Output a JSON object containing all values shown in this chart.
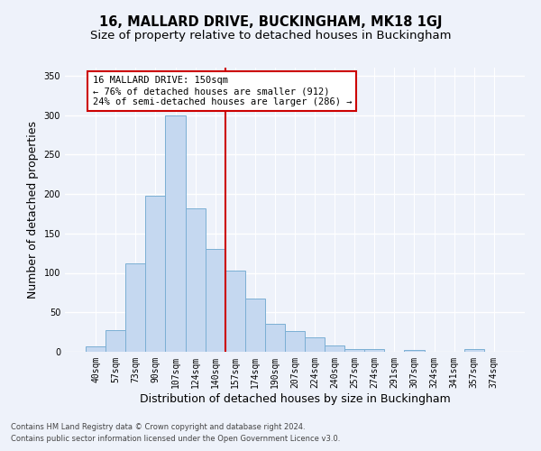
{
  "title": "16, MALLARD DRIVE, BUCKINGHAM, MK18 1GJ",
  "subtitle": "Size of property relative to detached houses in Buckingham",
  "xlabel": "Distribution of detached houses by size in Buckingham",
  "ylabel": "Number of detached properties",
  "categories": [
    "40sqm",
    "57sqm",
    "73sqm",
    "90sqm",
    "107sqm",
    "124sqm",
    "140sqm",
    "157sqm",
    "174sqm",
    "190sqm",
    "207sqm",
    "224sqm",
    "240sqm",
    "257sqm",
    "274sqm",
    "291sqm",
    "307sqm",
    "324sqm",
    "341sqm",
    "357sqm",
    "374sqm"
  ],
  "values": [
    7,
    27,
    112,
    198,
    300,
    182,
    130,
    103,
    68,
    35,
    26,
    18,
    8,
    4,
    4,
    0,
    2,
    0,
    0,
    3,
    0
  ],
  "bar_color": "#c5d8f0",
  "bar_edge_color": "#7bafd4",
  "vline_x_index": 7,
  "vline_color": "#cc0000",
  "annotation_text": "16 MALLARD DRIVE: 150sqm\n← 76% of detached houses are smaller (912)\n24% of semi-detached houses are larger (286) →",
  "annotation_box_color": "#ffffff",
  "annotation_box_edge_color": "#cc0000",
  "footnote1": "Contains HM Land Registry data © Crown copyright and database right 2024.",
  "footnote2": "Contains public sector information licensed under the Open Government Licence v3.0.",
  "background_color": "#eef2fa",
  "ylim": [
    0,
    360
  ],
  "yticks": [
    0,
    50,
    100,
    150,
    200,
    250,
    300,
    350
  ],
  "grid_color": "#ffffff",
  "title_fontsize": 10.5,
  "subtitle_fontsize": 9.5,
  "xlabel_fontsize": 9,
  "ylabel_fontsize": 9,
  "tick_fontsize": 7,
  "annotation_fontsize": 7.5,
  "footnote_fontsize": 6
}
